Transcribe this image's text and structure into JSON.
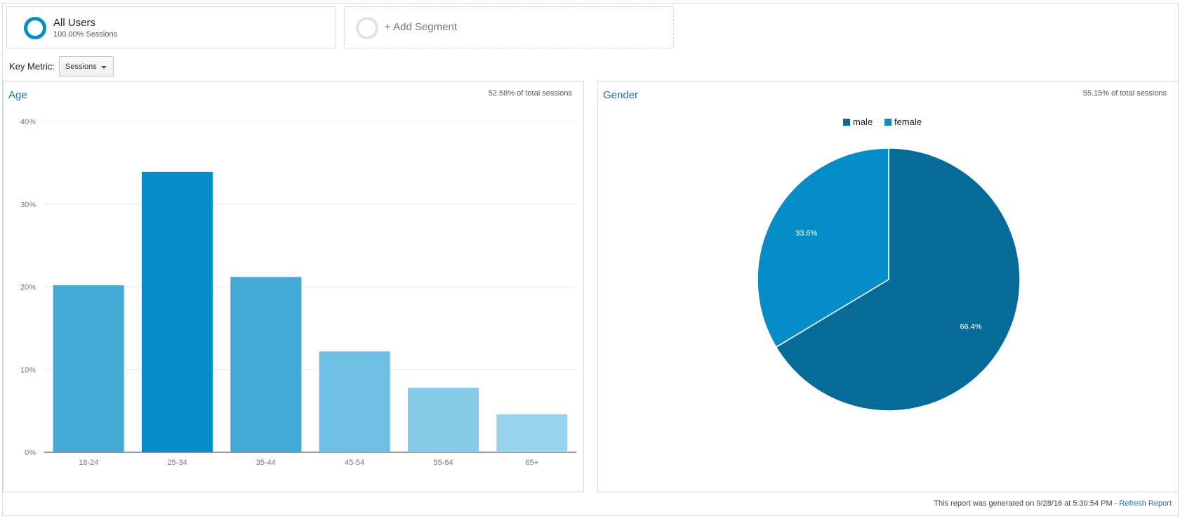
{
  "segments": {
    "all_users": {
      "title": "All Users",
      "subtitle": "100.00% Sessions"
    },
    "add_label": "+ Add Segment"
  },
  "key_metric": {
    "label": "Key Metric:",
    "value": "Sessions"
  },
  "colors": {
    "accent": "#058dc7",
    "link": "#1f6fb5",
    "male": "#066b98",
    "female": "#058dc7"
  },
  "age_panel": {
    "title": "Age",
    "total_text": "52.58% of total sessions"
  },
  "gender_panel": {
    "title": "Gender",
    "total_text": "55.15% of total sessions"
  },
  "chart_data": [
    {
      "type": "bar",
      "title": "Age",
      "categories": [
        "18-24",
        "25-34",
        "35-44",
        "45-54",
        "55-64",
        "65+"
      ],
      "values": [
        20.2,
        33.9,
        21.2,
        12.2,
        7.8,
        4.6
      ],
      "bar_colors": [
        "#45a9d6",
        "#058dc7",
        "#45a9d6",
        "#6dc0e3",
        "#86cbea",
        "#98d4ec"
      ],
      "ylim": [
        0,
        40
      ],
      "yticks": [
        "0%",
        "10%",
        "20%",
        "30%",
        "40%"
      ],
      "grid": true
    },
    {
      "type": "pie",
      "title": "Gender",
      "categories": [
        "male",
        "female"
      ],
      "values": [
        66.4,
        33.6
      ],
      "labels": [
        "66.4%",
        "33.6%"
      ],
      "legend": "top"
    }
  ],
  "footer": {
    "text": "This report was generated on 9/28/16 at 5:30:54 PM - ",
    "link": "Refresh Report"
  }
}
